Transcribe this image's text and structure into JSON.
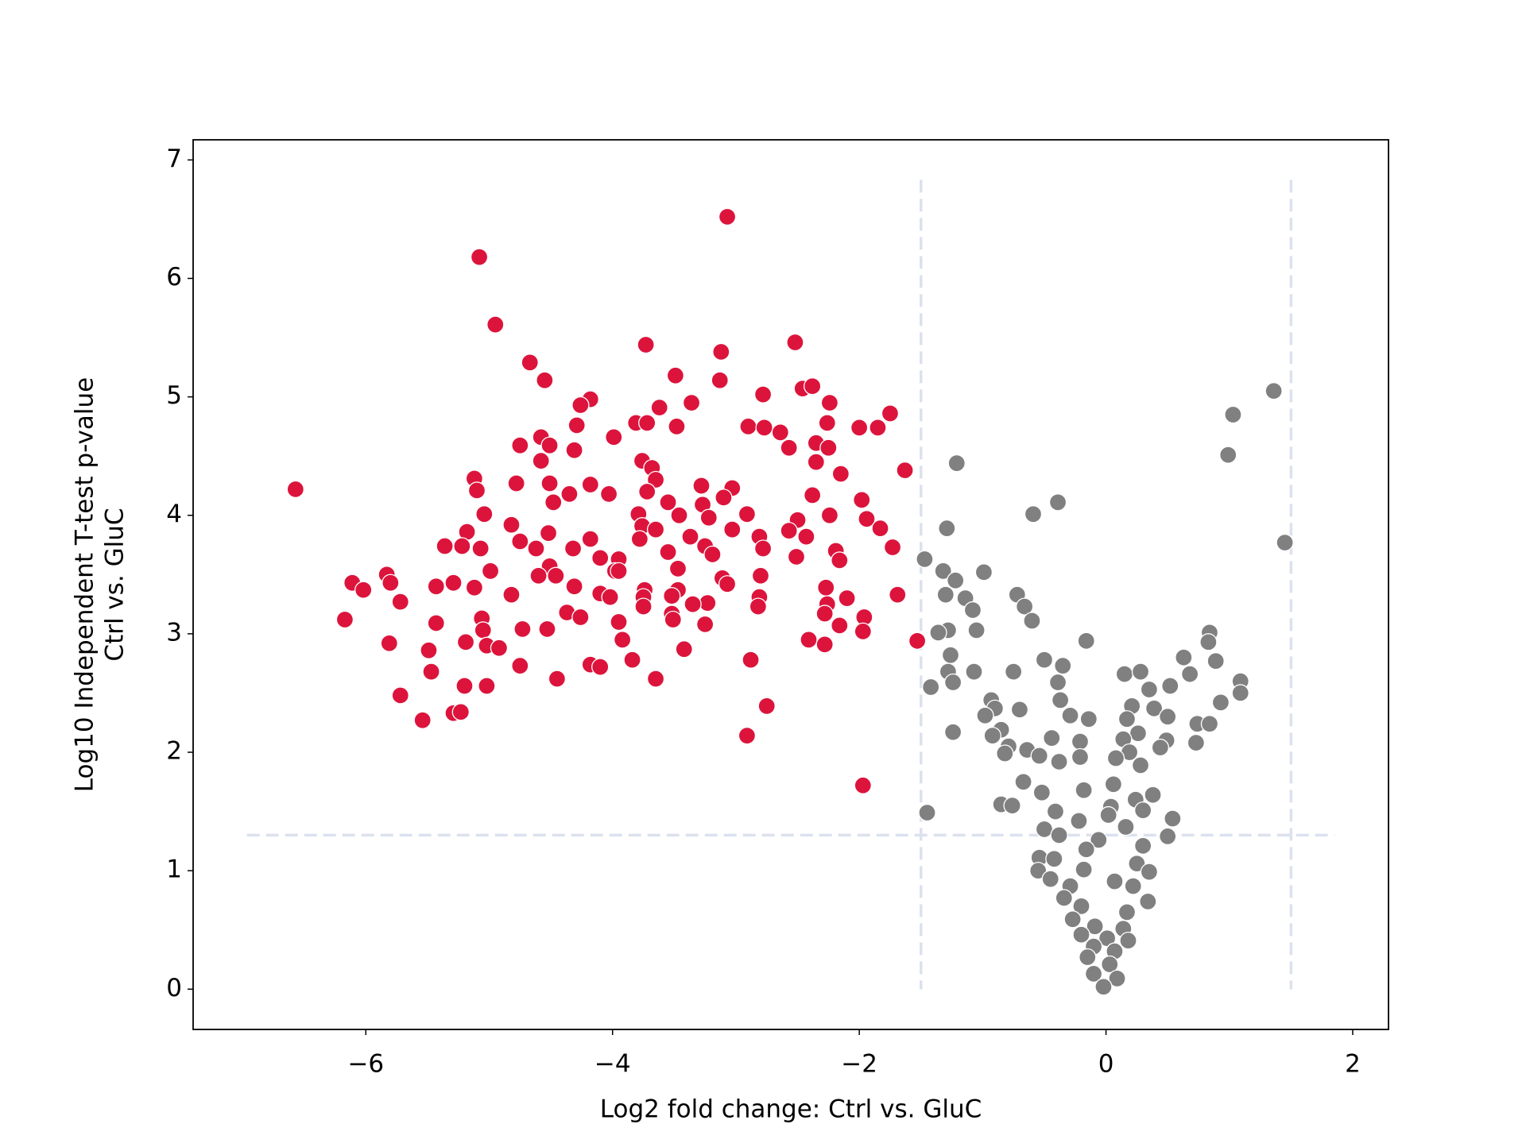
{
  "chart_data": {
    "type": "scatter",
    "xlabel": "Log2 fold change: Ctrl vs. GluC",
    "ylabel": [
      "Log10 Independent T-test p-value",
      "Ctrl vs. GluC"
    ],
    "xlim": [
      -7.4,
      2.29
    ],
    "ylim": [
      -0.34,
      7.17
    ],
    "xticks": [
      {
        "value": -6,
        "label": "−6"
      },
      {
        "value": -4,
        "label": "−4"
      },
      {
        "value": -2,
        "label": "−2"
      },
      0,
      2
    ],
    "yticks": [
      0,
      1,
      2,
      3,
      4,
      5,
      6,
      7
    ],
    "threshold_lines": {
      "x": [
        -1.5,
        1.5
      ],
      "y": [
        1.3
      ],
      "color": "#dbe2ee"
    },
    "series": [
      {
        "color": "#dc143c",
        "x": [
          -6.57,
          -3.07,
          -5.08,
          -4.95,
          -3.73,
          -2.52,
          -4.67,
          -3.12,
          -4.55,
          -3.49,
          -3.13,
          -4.18,
          -4.26,
          -3.62,
          -3.36,
          -2.78,
          -2.46,
          -2.38,
          -2.24,
          -1.75,
          -4.29,
          -3.81,
          -3.72,
          -3.48,
          -2.9,
          -2.77,
          -2.64,
          -2.26,
          -2.0,
          -1.85,
          -4.58,
          -4.75,
          -4.51,
          -4.31,
          -3.99,
          -2.57,
          -2.35,
          -2.25,
          -4.58,
          -3.76,
          -3.68,
          -2.35,
          -1.63,
          -5.12,
          -4.78,
          -4.51,
          -4.18,
          -3.65,
          -3.03,
          -3.28,
          -2.15,
          -5.1,
          -4.35,
          -4.03,
          -3.72,
          -3.1,
          -2.38,
          -1.98,
          -4.48,
          -3.55,
          -3.27,
          -5.04,
          -4.82,
          -3.79,
          -3.46,
          -2.91,
          -2.24,
          -3.22,
          -2.5,
          -1.94,
          -3.76,
          -3.65,
          -3.03,
          -5.18,
          -4.52,
          -2.57,
          -2.43,
          -1.83,
          -2.81,
          -3.78,
          -3.37,
          -4.75,
          -4.18,
          -5.36,
          -5.22,
          -5.07,
          -4.62,
          -4.32,
          -3.25,
          -1.73,
          -2.78,
          -2.19,
          -3.55,
          -3.19,
          -2.51,
          -4.1,
          -3.95,
          -2.16,
          -4.51,
          -4.99,
          -3.98,
          -3.95,
          -4.46,
          -3.47,
          -5.83,
          -4.6,
          -2.8,
          -3.11,
          -5.8,
          -6.11,
          -5.29,
          -5.43,
          -4.31,
          -3.07,
          -6.02,
          -5.12,
          -2.27,
          -3.74,
          -3.47,
          -4.82,
          -4.1,
          -4.02,
          -3.75,
          -3.52,
          -2.81,
          -2.1,
          -5.72,
          -3.23,
          -3.35,
          -2.26,
          -1.69,
          -2.82,
          -3.75,
          -4.37,
          -3.52,
          -2.28,
          -1.96,
          -4.26,
          -5.06,
          -6.17,
          -3.51,
          -3.95,
          -5.43,
          -3.25,
          -5.05,
          -4.73,
          -4.53,
          -2.16,
          -1.97,
          -1.53,
          -5.19,
          -3.92,
          -2.41,
          -2.28,
          -5.81,
          -5.02,
          -4.92,
          -3.42,
          -5.49,
          -3.84,
          -2.88,
          -4.18,
          -4.1,
          -4.75,
          -5.47,
          -4.45,
          -3.65,
          -5.2,
          -5.02,
          -5.72,
          -2.75,
          -5.29,
          -5.23,
          -5.54,
          -2.91,
          -1.97
        ],
        "y": [
          4.22,
          6.52,
          6.18,
          5.61,
          5.44,
          5.46,
          5.29,
          5.38,
          5.14,
          5.18,
          5.14,
          4.98,
          4.93,
          4.91,
          4.95,
          5.02,
          5.07,
          5.09,
          4.95,
          4.86,
          4.76,
          4.78,
          4.78,
          4.75,
          4.75,
          4.74,
          4.7,
          4.78,
          4.74,
          4.74,
          4.66,
          4.59,
          4.59,
          4.55,
          4.66,
          4.57,
          4.61,
          4.57,
          4.46,
          4.46,
          4.4,
          4.45,
          4.38,
          4.31,
          4.27,
          4.27,
          4.26,
          4.3,
          4.23,
          4.25,
          4.35,
          4.21,
          4.18,
          4.18,
          4.2,
          4.15,
          4.17,
          4.13,
          4.11,
          4.11,
          4.09,
          4.01,
          3.92,
          4.01,
          4.0,
          4.01,
          4.0,
          3.98,
          3.96,
          3.97,
          3.91,
          3.88,
          3.88,
          3.86,
          3.85,
          3.87,
          3.82,
          3.89,
          3.82,
          3.8,
          3.82,
          3.78,
          3.8,
          3.74,
          3.74,
          3.72,
          3.72,
          3.72,
          3.74,
          3.73,
          3.72,
          3.7,
          3.69,
          3.67,
          3.65,
          3.64,
          3.63,
          3.62,
          3.57,
          3.53,
          3.53,
          3.53,
          3.49,
          3.55,
          3.5,
          3.49,
          3.49,
          3.47,
          3.43,
          3.43,
          3.43,
          3.4,
          3.4,
          3.42,
          3.37,
          3.39,
          3.39,
          3.37,
          3.37,
          3.33,
          3.34,
          3.31,
          3.31,
          3.32,
          3.31,
          3.3,
          3.27,
          3.26,
          3.25,
          3.25,
          3.33,
          3.23,
          3.23,
          3.18,
          3.17,
          3.17,
          3.14,
          3.14,
          3.13,
          3.12,
          3.12,
          3.1,
          3.09,
          3.08,
          3.03,
          3.04,
          3.04,
          3.07,
          3.02,
          2.94,
          2.93,
          2.95,
          2.95,
          2.91,
          2.92,
          2.9,
          2.88,
          2.87,
          2.86,
          2.78,
          2.78,
          2.74,
          2.72,
          2.73,
          2.68,
          2.62,
          2.62,
          2.56,
          2.56,
          2.48,
          2.39,
          2.33,
          2.34,
          2.27,
          2.14,
          1.72
        ]
      },
      {
        "color": "#808080",
        "x": [
          1.36,
          1.03,
          0.99,
          1.45,
          -1.21,
          -0.39,
          -0.59,
          -1.29,
          -1.47,
          -1.32,
          -1.22,
          -0.99,
          -1.3,
          -1.14,
          -0.72,
          -0.66,
          -1.08,
          -0.6,
          -1.28,
          -1.36,
          -1.05,
          0.84,
          0.83,
          -0.16,
          -1.26,
          -0.5,
          0.63,
          0.89,
          -0.35,
          -1.28,
          -1.07,
          -0.75,
          0.15,
          0.28,
          0.68,
          -1.24,
          -0.39,
          1.09,
          -1.42,
          0.52,
          0.35,
          1.09,
          -0.37,
          -0.93,
          0.93,
          0.21,
          -0.9,
          -0.7,
          0.39,
          -0.98,
          -0.29,
          0.5,
          -0.14,
          0.17,
          0.74,
          0.84,
          -1.24,
          -0.85,
          0.26,
          -0.92,
          -0.44,
          0.14,
          0.49,
          -0.21,
          -0.79,
          0.73,
          0.44,
          -0.64,
          0.19,
          -0.82,
          -0.54,
          -0.21,
          0.08,
          -0.38,
          0.28,
          -0.67,
          0.06,
          -0.52,
          -0.18,
          0.38,
          0.24,
          -0.85,
          -0.76,
          0.04,
          -1.45,
          -0.41,
          0.3,
          0.54,
          0.02,
          -0.22,
          -0.5,
          0.16,
          0.5,
          -0.38,
          -0.06,
          -0.16,
          0.3,
          -0.54,
          -0.42,
          0.25,
          -0.18,
          -0.55,
          0.35,
          -0.45,
          0.07,
          -0.29,
          0.22,
          -0.34,
          0.34,
          -0.2,
          0.17,
          -0.27,
          -0.09,
          0.14,
          -0.2,
          0.01,
          0.18,
          -0.1,
          0.07,
          -0.15,
          0.03,
          -0.1,
          0.09,
          -0.02
        ],
        "y": [
          5.05,
          4.85,
          4.51,
          3.77,
          4.44,
          4.11,
          4.01,
          3.89,
          3.63,
          3.53,
          3.45,
          3.52,
          3.33,
          3.3,
          3.33,
          3.23,
          3.2,
          3.11,
          3.03,
          3.01,
          3.03,
          3.01,
          2.93,
          2.94,
          2.82,
          2.78,
          2.8,
          2.77,
          2.73,
          2.68,
          2.68,
          2.68,
          2.66,
          2.68,
          2.66,
          2.59,
          2.59,
          2.6,
          2.55,
          2.56,
          2.53,
          2.5,
          2.44,
          2.44,
          2.42,
          2.39,
          2.37,
          2.36,
          2.37,
          2.31,
          2.31,
          2.3,
          2.28,
          2.28,
          2.24,
          2.24,
          2.17,
          2.19,
          2.16,
          2.14,
          2.12,
          2.11,
          2.1,
          2.09,
          2.05,
          2.08,
          2.04,
          2.02,
          2.0,
          1.99,
          1.97,
          1.96,
          1.95,
          1.92,
          1.89,
          1.75,
          1.73,
          1.66,
          1.68,
          1.64,
          1.6,
          1.56,
          1.55,
          1.54,
          1.49,
          1.5,
          1.51,
          1.44,
          1.47,
          1.42,
          1.35,
          1.37,
          1.29,
          1.3,
          1.26,
          1.18,
          1.21,
          1.11,
          1.1,
          1.06,
          1.01,
          1.0,
          0.99,
          0.93,
          0.91,
          0.87,
          0.87,
          0.77,
          0.74,
          0.7,
          0.65,
          0.59,
          0.53,
          0.51,
          0.46,
          0.43,
          0.41,
          0.36,
          0.32,
          0.27,
          0.21,
          0.13,
          0.09,
          0.02
        ]
      }
    ]
  }
}
